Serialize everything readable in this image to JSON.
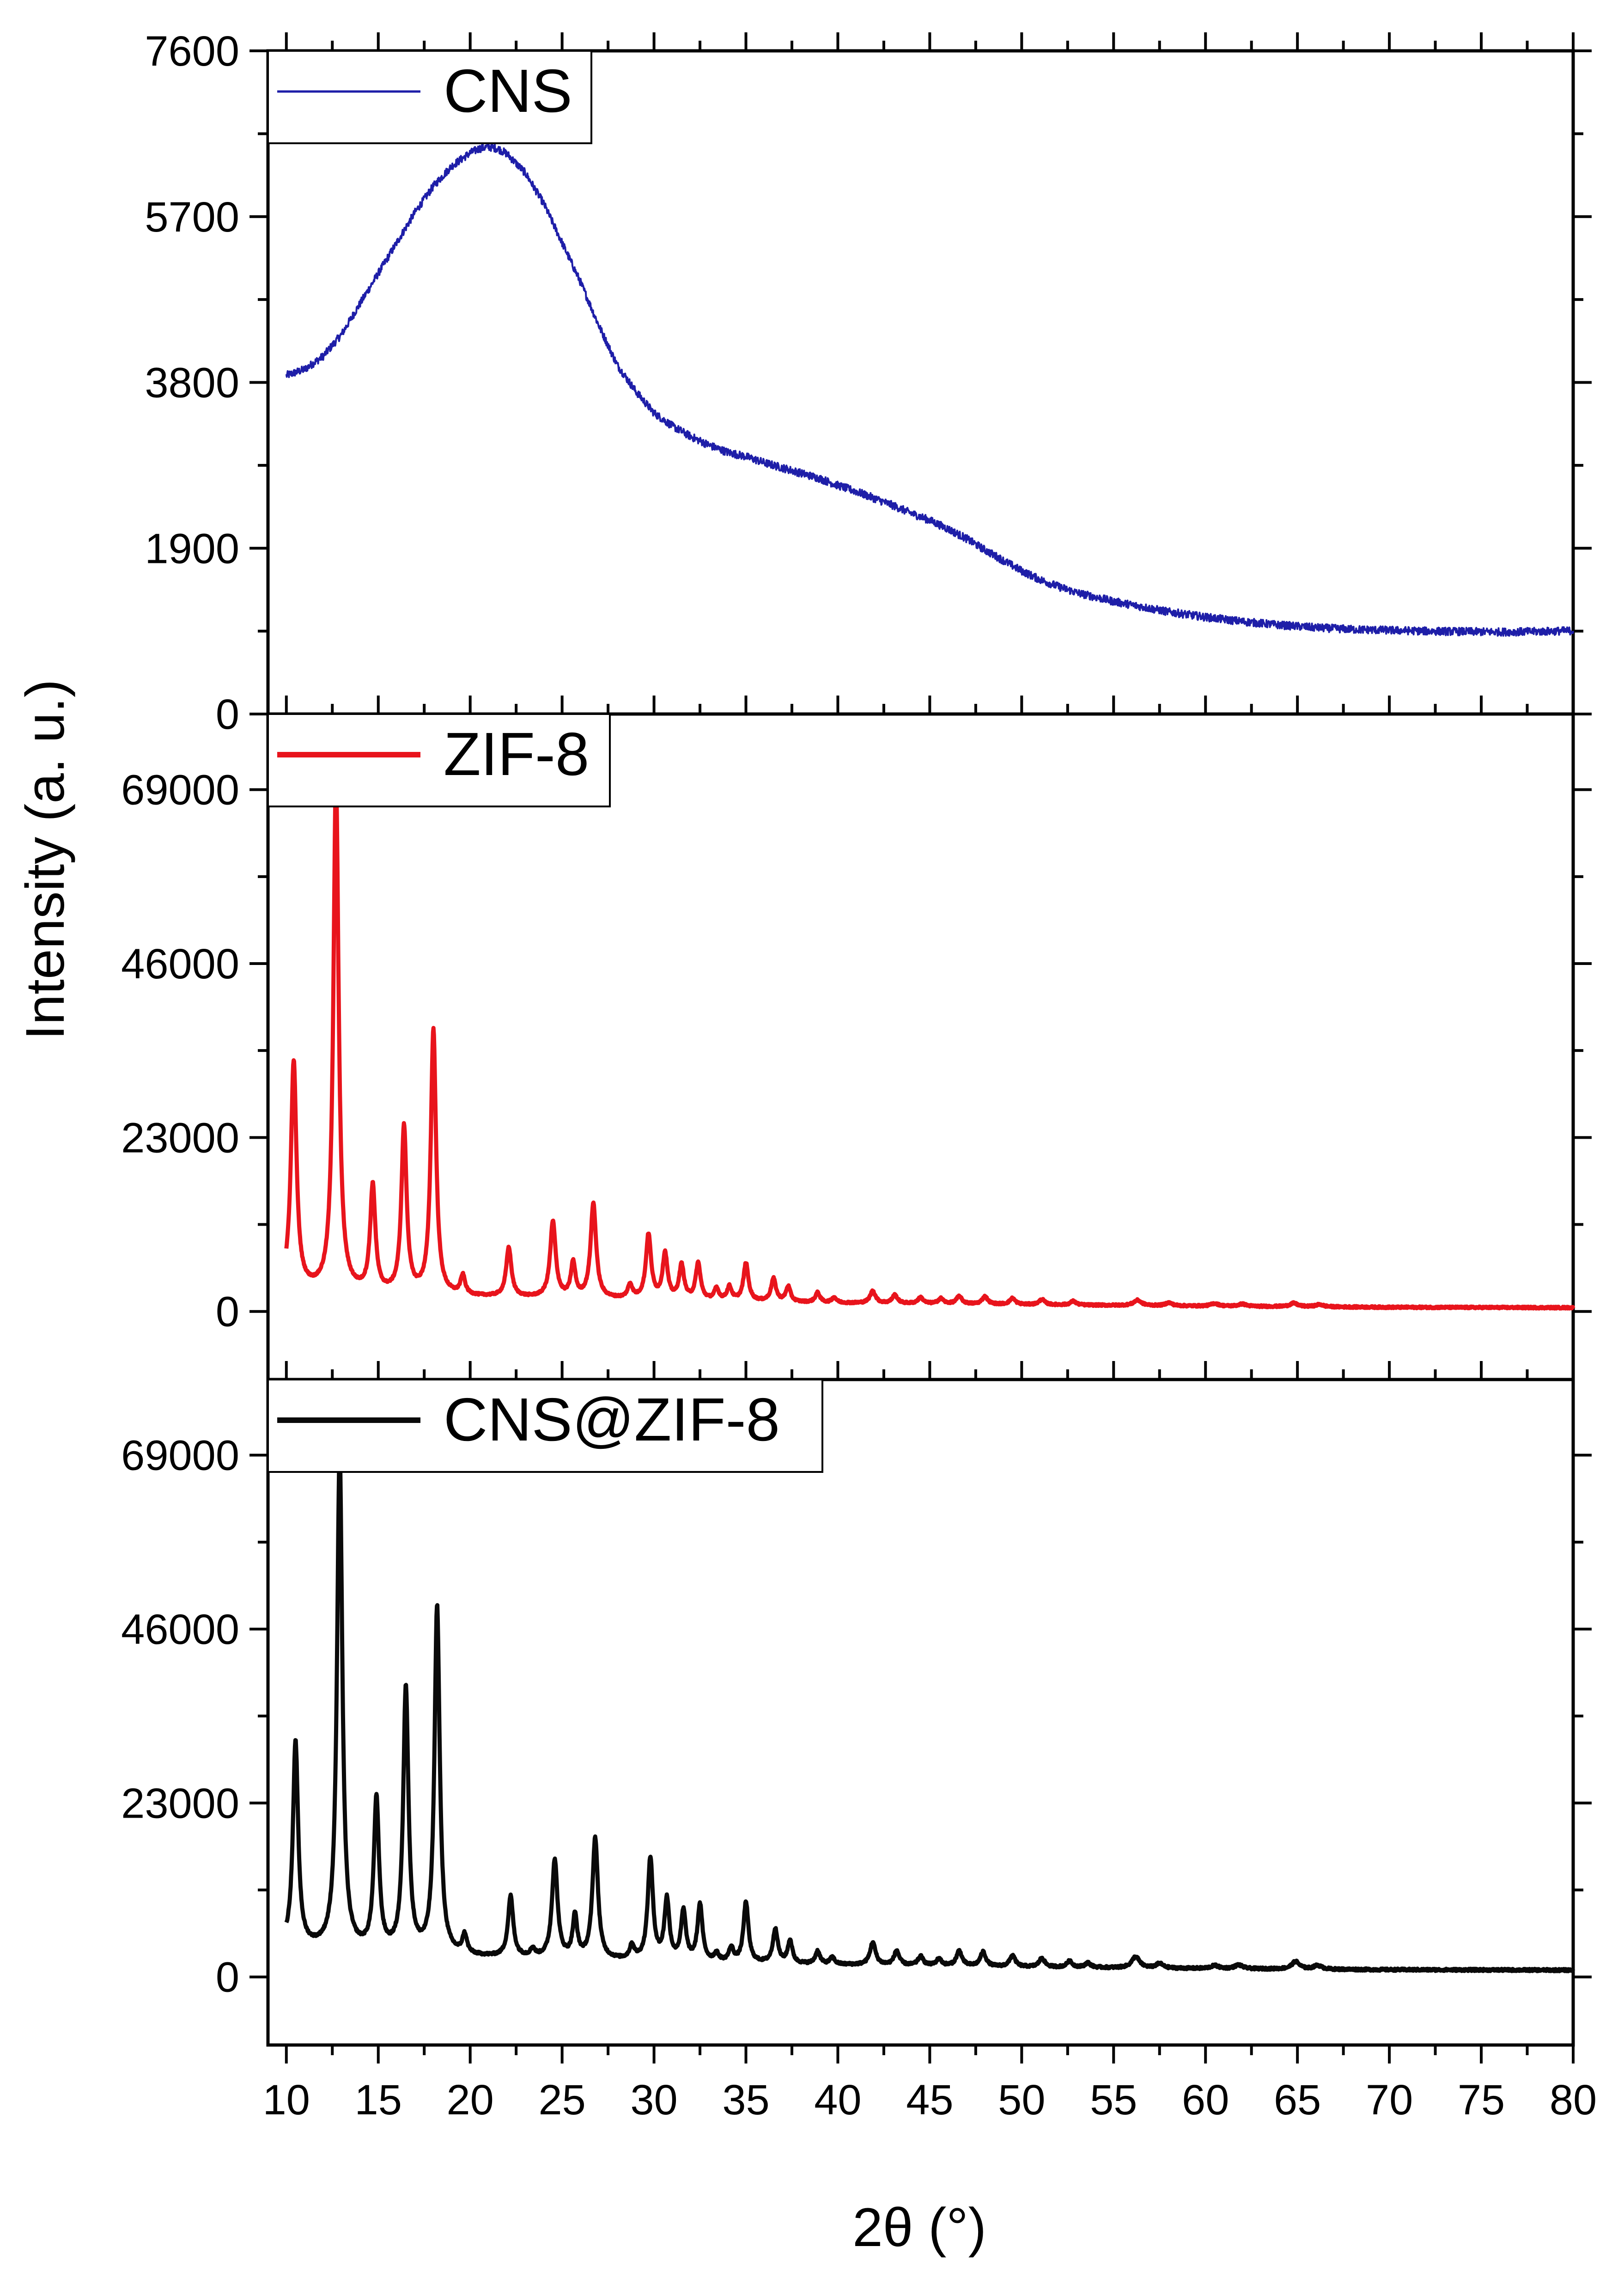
{
  "chart_data": [
    {
      "type": "line",
      "series": [
        {
          "name": "CNS",
          "color": "#1e1ea8",
          "points": [
            [
              10,
              3880
            ],
            [
              11,
              3950
            ],
            [
              12,
              4100
            ],
            [
              13,
              4350
            ],
            [
              14,
              4700
            ],
            [
              15,
              5050
            ],
            [
              16,
              5400
            ],
            [
              17,
              5750
            ],
            [
              18,
              6050
            ],
            [
              19,
              6280
            ],
            [
              20,
              6430
            ],
            [
              20.5,
              6480
            ],
            [
              21,
              6500
            ],
            [
              21.5,
              6480
            ],
            [
              22,
              6420
            ],
            [
              23,
              6200
            ],
            [
              24,
              5850
            ],
            [
              25,
              5400
            ],
            [
              26,
              4950
            ],
            [
              27,
              4450
            ],
            [
              28,
              4000
            ],
            [
              29,
              3700
            ],
            [
              30,
              3450
            ],
            [
              31,
              3300
            ],
            [
              32,
              3180
            ],
            [
              33,
              3080
            ],
            [
              34,
              3000
            ],
            [
              35,
              2950
            ],
            [
              36,
              2880
            ],
            [
              37,
              2820
            ],
            [
              38,
              2760
            ],
            [
              39,
              2700
            ],
            [
              40,
              2620
            ],
            [
              41,
              2550
            ],
            [
              42,
              2470
            ],
            [
              43,
              2390
            ],
            [
              44,
              2300
            ],
            [
              45,
              2220
            ],
            [
              46,
              2120
            ],
            [
              47,
              2010
            ],
            [
              48,
              1880
            ],
            [
              49,
              1760
            ],
            [
              50,
              1640
            ],
            [
              51,
              1540
            ],
            [
              52,
              1460
            ],
            [
              53,
              1390
            ],
            [
              54,
              1340
            ],
            [
              55,
              1290
            ],
            [
              56,
              1250
            ],
            [
              57,
              1210
            ],
            [
              58,
              1170
            ],
            [
              59,
              1140
            ],
            [
              60,
              1110
            ],
            [
              62,
              1060
            ],
            [
              64,
              1020
            ],
            [
              66,
              990
            ],
            [
              68,
              970
            ],
            [
              70,
              960
            ],
            [
              72,
              950
            ],
            [
              74,
              945
            ],
            [
              76,
              940
            ],
            [
              78,
              945
            ],
            [
              80,
              955
            ]
          ]
        }
      ],
      "y_ticks": [
        "0",
        "1900",
        "3800",
        "5700",
        "7600"
      ],
      "ylim": [
        0,
        7600
      ],
      "xlim": [
        9,
        80
      ],
      "noise": 45
    },
    {
      "type": "line",
      "series": [
        {
          "name": "ZIF-8",
          "color": "#e8141c",
          "baseline": [
            [
              10,
              3000
            ],
            [
              12,
              2500
            ],
            [
              15,
              2200
            ],
            [
              20,
              1900
            ],
            [
              25,
              1700
            ],
            [
              30,
              1500
            ],
            [
              35,
              1300
            ],
            [
              40,
              1100
            ],
            [
              50,
              900
            ],
            [
              60,
              700
            ],
            [
              70,
              550
            ],
            [
              80,
              500
            ]
          ],
          "peaks": [
            [
              10.4,
              30000,
              0.18
            ],
            [
              12.7,
              68000,
              0.17
            ],
            [
              14.7,
              14000,
              0.17
            ],
            [
              16.4,
              22000,
              0.17
            ],
            [
              18.0,
              35000,
              0.17
            ],
            [
              19.6,
              2500,
              0.15
            ],
            [
              22.1,
              6500,
              0.17
            ],
            [
              24.5,
              10000,
              0.18
            ],
            [
              25.6,
              4500,
              0.15
            ],
            [
              26.7,
              12500,
              0.18
            ],
            [
              28.7,
              1800,
              0.15
            ],
            [
              29.7,
              8500,
              0.17
            ],
            [
              30.6,
              6000,
              0.16
            ],
            [
              31.5,
              4500,
              0.16
            ],
            [
              32.4,
              4800,
              0.16
            ],
            [
              33.4,
              1500,
              0.15
            ],
            [
              34.1,
              1800,
              0.15
            ],
            [
              35.0,
              5000,
              0.16
            ],
            [
              36.5,
              3000,
              0.16
            ],
            [
              37.3,
              2000,
              0.15
            ],
            [
              38.9,
              1300,
              0.15
            ],
            [
              39.8,
              700,
              0.15
            ],
            [
              41.9,
              1600,
              0.18
            ],
            [
              43.1,
              1100,
              0.17
            ],
            [
              44.5,
              800,
              0.17
            ],
            [
              45.6,
              700,
              0.17
            ],
            [
              46.6,
              1000,
              0.18
            ],
            [
              48.0,
              1000,
              0.18
            ],
            [
              49.5,
              800,
              0.18
            ],
            [
              51.1,
              700,
              0.18
            ],
            [
              52.8,
              500,
              0.18
            ],
            [
              56.3,
              700,
              0.25
            ],
            [
              58.0,
              400,
              0.22
            ],
            [
              60.5,
              350,
              0.25
            ],
            [
              62.0,
              300,
              0.25
            ],
            [
              64.8,
              450,
              0.25
            ],
            [
              66.2,
              300,
              0.25
            ]
          ]
        }
      ],
      "y_ticks": [
        "0",
        "23000",
        "46000",
        "69000"
      ],
      "ylim": [
        -9000,
        79000
      ],
      "xlim": [
        9,
        80
      ],
      "noise": 120
    },
    {
      "type": "line",
      "series": [
        {
          "name": "CNS@ZIF-8",
          "color": "#0a0a0a",
          "baseline": [
            [
              10,
              4000
            ],
            [
              12,
              3600
            ],
            [
              15,
              3100
            ],
            [
              20,
              2600
            ],
            [
              25,
              2300
            ],
            [
              30,
              2000
            ],
            [
              35,
              1800
            ],
            [
              40,
              1600
            ],
            [
              50,
              1300
            ],
            [
              60,
              1100
            ],
            [
              70,
              950
            ],
            [
              80,
              900
            ]
          ],
          "peaks": [
            [
              10.5,
              27000,
              0.17
            ],
            [
              12.9,
              66000,
              0.17
            ],
            [
              14.9,
              20000,
              0.17
            ],
            [
              16.5,
              35000,
              0.17
            ],
            [
              18.2,
              46000,
              0.17
            ],
            [
              19.7,
              2500,
              0.15
            ],
            [
              22.2,
              8000,
              0.17
            ],
            [
              23.4,
              1000,
              0.15
            ],
            [
              24.6,
              13000,
              0.18
            ],
            [
              25.7,
              5500,
              0.15
            ],
            [
              26.8,
              16000,
              0.18
            ],
            [
              28.8,
              1800,
              0.15
            ],
            [
              29.8,
              13500,
              0.17
            ],
            [
              30.7,
              8000,
              0.16
            ],
            [
              31.6,
              6500,
              0.16
            ],
            [
              32.5,
              7500,
              0.16
            ],
            [
              33.4,
              1000,
              0.15
            ],
            [
              34.2,
              1800,
              0.15
            ],
            [
              35.0,
              8000,
              0.16
            ],
            [
              36.6,
              4500,
              0.16
            ],
            [
              37.4,
              3000,
              0.15
            ],
            [
              38.9,
              1700,
              0.15
            ],
            [
              39.7,
              900,
              0.15
            ],
            [
              41.9,
              3000,
              0.18
            ],
            [
              43.2,
              1900,
              0.17
            ],
            [
              44.5,
              1200,
              0.17
            ],
            [
              45.5,
              900,
              0.17
            ],
            [
              46.6,
              2000,
              0.18
            ],
            [
              47.9,
              1900,
              0.18
            ],
            [
              49.5,
              1500,
              0.18
            ],
            [
              51.1,
              1200,
              0.18
            ],
            [
              52.6,
              800,
              0.18
            ],
            [
              53.6,
              600,
              0.18
            ],
            [
              56.2,
              1500,
              0.25
            ],
            [
              57.5,
              600,
              0.22
            ],
            [
              60.5,
              400,
              0.25
            ],
            [
              61.8,
              500,
              0.25
            ],
            [
              64.9,
              1000,
              0.25
            ],
            [
              66.1,
              500,
              0.25
            ]
          ]
        }
      ],
      "y_ticks": [
        "0",
        "23000",
        "46000",
        "69000"
      ],
      "ylim": [
        -9000,
        79000
      ],
      "xlim": [
        9,
        80
      ],
      "noise": 150
    }
  ],
  "x_ticks": [
    "10",
    "15",
    "20",
    "25",
    "30",
    "35",
    "40",
    "45",
    "50",
    "55",
    "60",
    "65",
    "70",
    "75",
    "80"
  ],
  "xlabel": "2θ (°)",
  "ylabel": "Intensity (a. u.)"
}
